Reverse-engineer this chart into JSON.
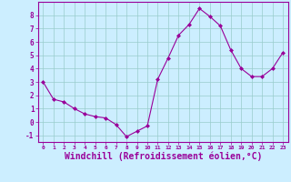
{
  "x": [
    0,
    1,
    2,
    3,
    4,
    5,
    6,
    7,
    8,
    9,
    10,
    11,
    12,
    13,
    14,
    15,
    16,
    17,
    18,
    19,
    20,
    21,
    22,
    23
  ],
  "y": [
    3.0,
    1.7,
    1.5,
    1.0,
    0.6,
    0.4,
    0.3,
    -0.2,
    -1.1,
    -0.7,
    -0.3,
    3.2,
    4.8,
    6.5,
    7.3,
    8.5,
    7.9,
    7.2,
    5.4,
    4.0,
    3.4,
    3.4,
    4.0,
    5.2
  ],
  "line_color": "#990099",
  "marker": "D",
  "marker_size": 2,
  "xlabel": "Windchill (Refroidissement éolien,°C)",
  "xlabel_fontsize": 7,
  "ylabel_ticks": [
    -1,
    0,
    1,
    2,
    3,
    4,
    5,
    6,
    7,
    8
  ],
  "xlim": [
    -0.5,
    23.5
  ],
  "ylim": [
    -1.5,
    9.0
  ],
  "background_color": "#cceeff",
  "grid_color": "#99cccc",
  "tick_color": "#990099",
  "label_color": "#990099",
  "spine_color": "#990099"
}
